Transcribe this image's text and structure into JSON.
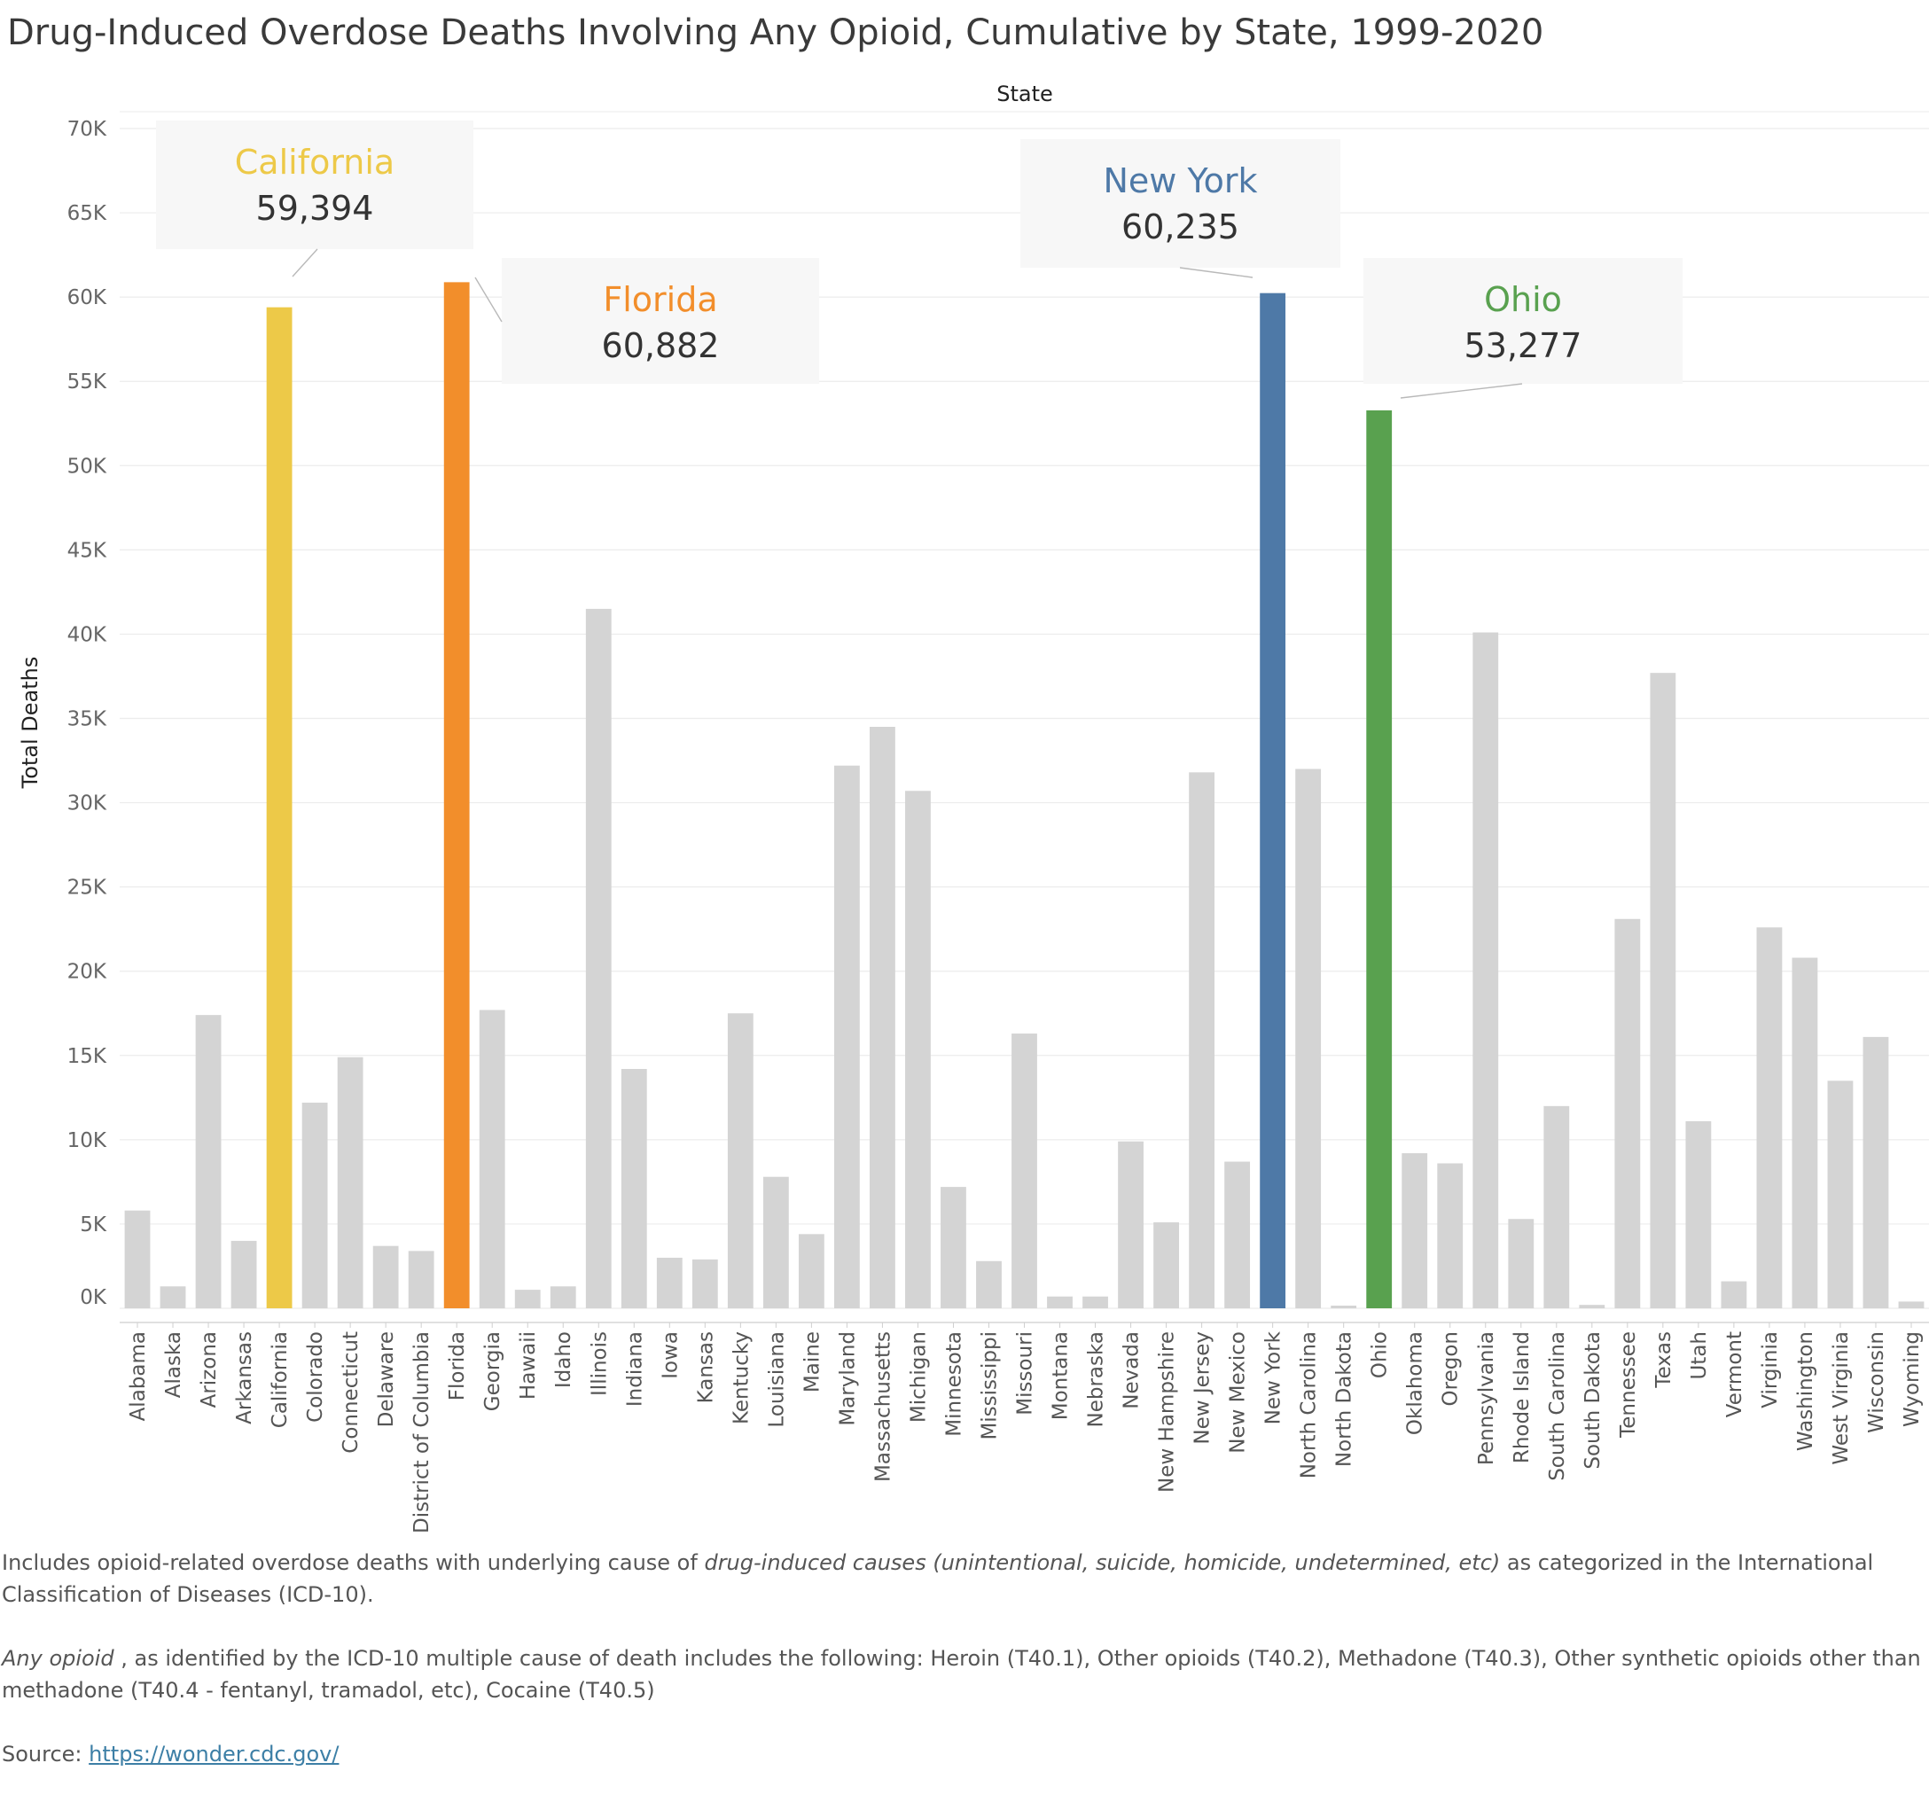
{
  "title": "Drug-Induced Overdose Deaths Involving Any Opioid, Cumulative by State, 1999-2020",
  "chart_data": {
    "type": "bar",
    "title": "Drug-Induced Overdose Deaths Involving Any Opioid, Cumulative by State, 1999-2020",
    "xlabel": "State",
    "ylabel": "Total Deaths",
    "ylim": [
      0,
      70000
    ],
    "y_ticks": [
      "0K",
      "5K",
      "10K",
      "15K",
      "20K",
      "25K",
      "30K",
      "35K",
      "40K",
      "45K",
      "50K",
      "55K",
      "60K",
      "65K",
      "70K"
    ],
    "grid": true,
    "categories": [
      "Alabama",
      "Alaska",
      "Arizona",
      "Arkansas",
      "California",
      "Colorado",
      "Connecticut",
      "Delaware",
      "District of Columbia",
      "Florida",
      "Georgia",
      "Hawaii",
      "Idaho",
      "Illinois",
      "Indiana",
      "Iowa",
      "Kansas",
      "Kentucky",
      "Louisiana",
      "Maine",
      "Maryland",
      "Massachusetts",
      "Michigan",
      "Minnesota",
      "Mississippi",
      "Missouri",
      "Montana",
      "Nebraska",
      "Nevada",
      "New Hampshire",
      "New Jersey",
      "New Mexico",
      "New York",
      "North Carolina",
      "North Dakota",
      "Ohio",
      "Oklahoma",
      "Oregon",
      "Pennsylvania",
      "Rhode Island",
      "South Carolina",
      "South Dakota",
      "Tennessee",
      "Texas",
      "Utah",
      "Vermont",
      "Virginia",
      "Washington",
      "West Virginia",
      "Wisconsin",
      "Wyoming"
    ],
    "values": [
      5800,
      1300,
      17400,
      4000,
      59394,
      12200,
      14900,
      3700,
      3400,
      60882,
      17700,
      1100,
      1300,
      41500,
      14200,
      3000,
      2900,
      17500,
      7800,
      4400,
      32200,
      34500,
      30700,
      7200,
      2800,
      16300,
      700,
      700,
      9900,
      5100,
      31800,
      8700,
      60235,
      32000,
      100,
      53277,
      9200,
      8600,
      40100,
      5300,
      12000,
      200,
      23100,
      37700,
      11100,
      1600,
      22600,
      20800,
      13500,
      16100,
      400
    ],
    "colors": {
      "default": "#d4d4d4",
      "California": "#edc948",
      "Florida": "#f28e2b",
      "New York": "#4e79a7",
      "Ohio": "#59a14f"
    },
    "callouts": [
      {
        "state": "California",
        "label": "California",
        "value_text": "59,394",
        "color": "#edc948"
      },
      {
        "state": "Florida",
        "label": "Florida",
        "value_text": "60,882",
        "color": "#f28e2b"
      },
      {
        "state": "New York",
        "label": "New York",
        "value_text": "60,235",
        "color": "#4e79a7"
      },
      {
        "state": "Ohio",
        "label": "Ohio",
        "value_text": "53,277",
        "color": "#59a14f"
      }
    ]
  },
  "notes": {
    "note1_prefix": "Includes opioid-related overdose deaths with underlying cause of ",
    "note1_italic": "drug-induced causes  (unintentional, suicide, homicide, undetermined, etc)",
    "note1_suffix": "  as categorized in the International Classification of Diseases (ICD-10).",
    "note2_italic": "Any opioid",
    "note2_text": " , as identified by the ICD-10 multiple cause of death includes the following: Heroin (T40.1), Other opioids (T40.2), Methadone (T40.3), Other synthetic opioids other than methadone (T40.4 - fentanyl, tramadol, etc), Cocaine (T40.5)",
    "source_label": "Source: ",
    "source_link": "https://wonder.cdc.gov/"
  }
}
